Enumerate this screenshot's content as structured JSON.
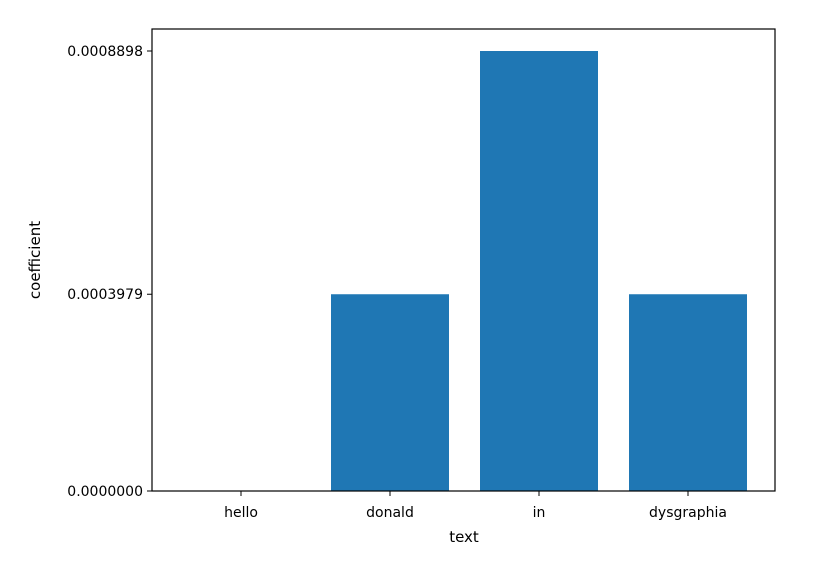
{
  "chart_data": {
    "type": "bar",
    "title": "",
    "xlabel": "text",
    "ylabel": "coefficient",
    "categories": [
      "hello",
      "donald",
      "in",
      "dysgraphia"
    ],
    "values": [
      0.0,
      0.0003979,
      0.0008898,
      0.0003979
    ],
    "yticks": [
      0.0,
      0.0003979,
      0.0008898
    ],
    "ytick_labels": [
      "0.0000000",
      "0.0003979",
      "0.0008898"
    ],
    "ylim": [
      0.0,
      0.0008898
    ],
    "bar_color": "#1f77b4",
    "grid": false,
    "legend": "none"
  }
}
